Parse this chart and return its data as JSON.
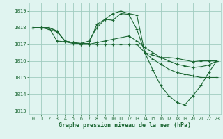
{
  "background_color": "#e0f4f0",
  "grid_color": "#a0ccc0",
  "line_color": "#1a6632",
  "marker_color": "#1a6632",
  "xlabel": "Graphe pression niveau de la mer (hPa)",
  "xlim": [
    -0.5,
    23.5
  ],
  "ylim": [
    1012.8,
    1019.5
  ],
  "yticks": [
    1013,
    1014,
    1015,
    1016,
    1017,
    1018,
    1019
  ],
  "xticks": [
    0,
    1,
    2,
    3,
    4,
    5,
    6,
    7,
    8,
    9,
    10,
    11,
    12,
    13,
    14,
    15,
    16,
    17,
    18,
    19,
    20,
    21,
    22,
    23
  ],
  "series": [
    [
      1018.0,
      1018.0,
      1018.0,
      1017.8,
      1017.2,
      1017.1,
      1017.05,
      1017.05,
      1018.2,
      1018.5,
      1018.45,
      1018.85,
      1018.8,
      1017.9,
      1016.5,
      1016.35,
      1016.2,
      1016.2,
      1016.15,
      1016.05,
      1015.95,
      1016.0,
      1016.0,
      1016.0
    ],
    [
      1018.0,
      1018.0,
      1017.9,
      1017.75,
      1017.2,
      1017.1,
      1017.05,
      1017.2,
      1018.0,
      1018.5,
      1018.85,
      1019.0,
      1018.85,
      1018.75,
      1016.5,
      1015.45,
      1014.5,
      1013.9,
      1013.5,
      1013.35,
      1013.9,
      1014.5,
      1015.3,
      1016.0
    ],
    [
      1018.0,
      1018.0,
      1018.0,
      1017.2,
      1017.15,
      1017.05,
      1017.0,
      1017.0,
      1017.1,
      1017.2,
      1017.3,
      1017.4,
      1017.5,
      1017.2,
      1016.8,
      1016.5,
      1016.2,
      1016.0,
      1015.8,
      1015.7,
      1015.6,
      1015.65,
      1015.75,
      1016.0
    ],
    [
      1018.0,
      1018.0,
      1018.0,
      1017.8,
      1017.2,
      1017.1,
      1017.0,
      1017.0,
      1017.0,
      1017.0,
      1017.0,
      1017.0,
      1017.0,
      1017.0,
      1016.5,
      1016.1,
      1015.8,
      1015.5,
      1015.3,
      1015.2,
      1015.1,
      1015.0,
      1015.0,
      1015.0
    ]
  ]
}
